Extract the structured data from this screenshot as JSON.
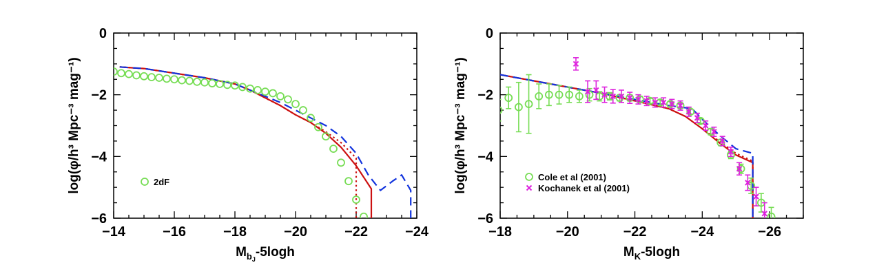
{
  "chart_data": [
    {
      "type": "line",
      "panel": "left",
      "title": "",
      "xlabel": "M_bJ-5logh",
      "xlabel_main": "M",
      "xlabel_sub": "b",
      "xlabel_subsub": "J",
      "xlabel_tail": "-5logh",
      "ylabel": "log(φ/h³ Mpc⁻³ mag⁻¹)",
      "xlim": [
        -14,
        -24
      ],
      "ylim": [
        -6,
        0
      ],
      "xticks": [
        -14,
        -16,
        -18,
        -20,
        -22,
        -24
      ],
      "xtick_labels": [
        "−14",
        "−16",
        "−18",
        "−20",
        "−22",
        "−24"
      ],
      "yticks": [
        0,
        -2,
        -4,
        -6
      ],
      "ytick_labels": [
        "0",
        "−2",
        "−4",
        "−6"
      ],
      "legend": {
        "location": "lower-left",
        "entries": [
          {
            "label": "2dF",
            "marker": "circle",
            "color": "#77dd55"
          }
        ]
      },
      "series": [
        {
          "name": "model-solid",
          "style": "solid",
          "color": "#cc1111",
          "x": [
            -14.2,
            -15,
            -16,
            -17,
            -18,
            -18.5,
            -19,
            -19.5,
            -20,
            -20.5,
            -21,
            -21.5,
            -22,
            -22.5,
            -22.5
          ],
          "y": [
            -1.1,
            -1.15,
            -1.3,
            -1.45,
            -1.65,
            -1.85,
            -2.1,
            -2.35,
            -2.65,
            -2.9,
            -3.25,
            -3.7,
            -4.3,
            -5.05,
            -6.1
          ]
        },
        {
          "name": "model-dotted",
          "style": "dotted",
          "color": "#cc1111",
          "x": [
            -14.2,
            -15,
            -16,
            -17,
            -18,
            -18.5,
            -19,
            -19.5,
            -20,
            -20.5,
            -21,
            -21.5,
            -22,
            -22,
            -22
          ],
          "y": [
            -1.1,
            -1.15,
            -1.3,
            -1.45,
            -1.65,
            -1.85,
            -2.1,
            -2.35,
            -2.65,
            -2.9,
            -3.2,
            -3.55,
            -4.05,
            -4.6,
            -6.1
          ]
        },
        {
          "name": "model-dashed",
          "style": "dashed",
          "color": "#1133dd",
          "x": [
            -14.2,
            -15,
            -16,
            -17,
            -18,
            -18.5,
            -19,
            -19.5,
            -20,
            -20.5,
            -21,
            -21.5,
            -22,
            -22.4,
            -22.8,
            -23.2,
            -23.5,
            -23.8,
            -23.8
          ],
          "y": [
            -1.1,
            -1.15,
            -1.3,
            -1.45,
            -1.65,
            -1.85,
            -2.05,
            -2.25,
            -2.5,
            -2.75,
            -3.0,
            -3.35,
            -3.9,
            -4.6,
            -5.1,
            -4.8,
            -4.6,
            -5.1,
            -6.1
          ]
        }
      ],
      "points": [
        {
          "name": "2dF",
          "marker": "circle",
          "color": "#77dd55",
          "x": [
            -14,
            -14.25,
            -14.5,
            -14.75,
            -15,
            -15.25,
            -15.5,
            -15.75,
            -16,
            -16.25,
            -16.5,
            -16.75,
            -17,
            -17.25,
            -17.5,
            -17.75,
            -18,
            -18.25,
            -18.5,
            -18.75,
            -19,
            -19.25,
            -19.5,
            -19.75,
            -20,
            -20.25,
            -20.5,
            -20.75,
            -21,
            -21.25,
            -21.5,
            -21.75,
            -22,
            -22.25
          ],
          "y": [
            -1.25,
            -1.3,
            -1.33,
            -1.37,
            -1.4,
            -1.43,
            -1.45,
            -1.48,
            -1.5,
            -1.53,
            -1.55,
            -1.58,
            -1.6,
            -1.63,
            -1.65,
            -1.68,
            -1.7,
            -1.75,
            -1.8,
            -1.85,
            -1.9,
            -1.95,
            -2.05,
            -2.15,
            -2.3,
            -2.5,
            -2.75,
            -3.05,
            -3.35,
            -3.75,
            -4.2,
            -4.8,
            -5.4,
            -5.95
          ]
        }
      ]
    },
    {
      "type": "line",
      "panel": "right",
      "title": "",
      "xlabel": "M_K-5logh",
      "xlabel_main": "M",
      "xlabel_sub": "K",
      "xlabel_tail": "-5logh",
      "ylabel": "log(φ/h³ Mpc⁻³ mag⁻¹)",
      "xlim": [
        -18,
        -27
      ],
      "ylim": [
        -6,
        0
      ],
      "xticks": [
        -18,
        -20,
        -22,
        -24,
        -26
      ],
      "xtick_labels": [
        "−18",
        "−20",
        "−22",
        "−24",
        "−26"
      ],
      "yticks": [
        0,
        -2,
        -4,
        -6
      ],
      "ytick_labels": [
        "0",
        "−2",
        "−4",
        "−6"
      ],
      "legend": {
        "location": "lower-left",
        "entries": [
          {
            "label": "Cole et al (2001)",
            "marker": "circle",
            "color": "#77dd55"
          },
          {
            "label": "Kochanek et al (2001)",
            "marker": "cross",
            "color": "#dd22dd"
          }
        ]
      },
      "series": [
        {
          "name": "model-solid",
          "style": "solid",
          "color": "#cc1111",
          "x": [
            -18,
            -19,
            -20,
            -21,
            -22,
            -23,
            -23.5,
            -24,
            -24.5,
            -25,
            -25.5,
            -25.5
          ],
          "y": [
            -1.35,
            -1.55,
            -1.75,
            -1.95,
            -2.2,
            -2.45,
            -2.7,
            -3.1,
            -3.55,
            -3.95,
            -4.2,
            -6.1
          ]
        },
        {
          "name": "model-dotted",
          "style": "dotted",
          "color": "#cc1111",
          "x": [
            -18,
            -19,
            -20,
            -21,
            -22,
            -23,
            -23.5,
            -24,
            -24.5,
            -25,
            -25.5,
            -25.5
          ],
          "y": [
            -1.35,
            -1.55,
            -1.75,
            -1.95,
            -2.2,
            -2.45,
            -2.7,
            -3.1,
            -3.5,
            -3.9,
            -4.15,
            -6.1
          ]
        },
        {
          "name": "model-dashed",
          "style": "dashed",
          "color": "#1133dd",
          "x": [
            -18,
            -19,
            -20,
            -21,
            -22,
            -23,
            -23.7,
            -24,
            -24.5,
            -25,
            -25.5,
            -25.5
          ],
          "y": [
            -1.35,
            -1.55,
            -1.75,
            -1.95,
            -2.15,
            -2.35,
            -2.45,
            -2.8,
            -3.3,
            -3.75,
            -3.9,
            -6.1
          ]
        }
      ],
      "points": [
        {
          "name": "Cole et al (2001)",
          "marker": "circle",
          "color": "#77dd55",
          "x": [
            -17.95,
            -18.25,
            -18.55,
            -18.85,
            -19.15,
            -19.45,
            -19.75,
            -20.05,
            -20.35,
            -20.65,
            -20.95,
            -21.25,
            -21.55,
            -21.85,
            -22.15,
            -22.45,
            -22.75,
            -23.05,
            -23.35,
            -23.65,
            -23.95,
            -24.25,
            -24.55,
            -24.85,
            -25.15,
            -25.45,
            -25.75,
            -26.05
          ],
          "y": [
            -2.5,
            -2.1,
            -2.4,
            -2.3,
            -2.05,
            -2.0,
            -2.0,
            -2.0,
            -2.05,
            -2.0,
            -2.05,
            -2.05,
            -2.1,
            -2.1,
            -2.15,
            -2.2,
            -2.25,
            -2.3,
            -2.35,
            -2.55,
            -2.85,
            -3.2,
            -3.55,
            -3.95,
            -4.4,
            -4.95,
            -5.5,
            -5.95
          ],
          "err": [
            0.35,
            0.35,
            0.8,
            0.95,
            0.4,
            0.35,
            0.3,
            0.25,
            0.2,
            0.2,
            0.15,
            0.12,
            0.1,
            0.1,
            0.1,
            0.08,
            0.08,
            0.08,
            0.08,
            0.08,
            0.08,
            0.1,
            0.1,
            0.12,
            0.15,
            0.25,
            0.3,
            0.3
          ]
        },
        {
          "name": "Kochanek et al (2001)",
          "marker": "cross",
          "color": "#dd22dd",
          "x": [
            -20.25,
            -20.6,
            -20.85,
            -21.1,
            -21.35,
            -21.6,
            -21.85,
            -22.1,
            -22.35,
            -22.6,
            -22.85,
            -23.1,
            -23.35,
            -23.6,
            -23.85,
            -24.1,
            -24.35,
            -24.6,
            -24.85,
            -25.1,
            -25.35,
            -25.6,
            -25.85
          ],
          "y": [
            -1.0,
            -1.9,
            -1.85,
            -2.0,
            -2.05,
            -2.05,
            -2.1,
            -2.15,
            -2.2,
            -2.25,
            -2.25,
            -2.3,
            -2.35,
            -2.55,
            -2.75,
            -3.0,
            -3.2,
            -3.5,
            -3.85,
            -4.4,
            -4.85,
            -5.3,
            -5.85
          ],
          "err": [
            0.2,
            0.35,
            0.3,
            0.25,
            0.22,
            0.2,
            0.18,
            0.15,
            0.15,
            0.15,
            0.15,
            0.15,
            0.15,
            0.15,
            0.15,
            0.15,
            0.15,
            0.15,
            0.15,
            0.2,
            0.25,
            0.3,
            0.35
          ]
        }
      ]
    }
  ]
}
